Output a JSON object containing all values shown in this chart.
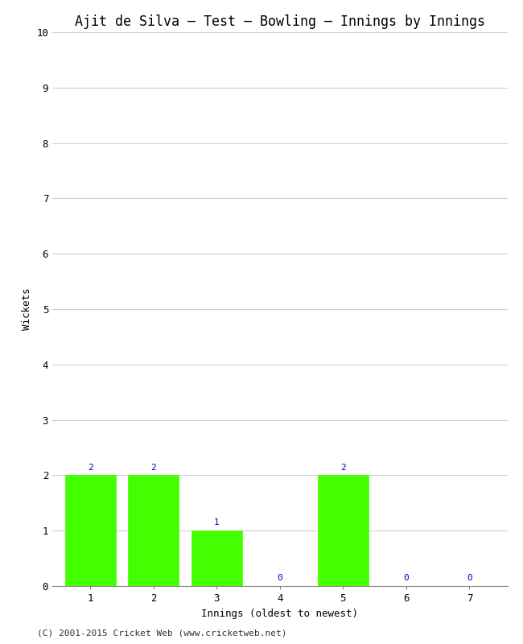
{
  "title": "Ajit de Silva – Test – Bowling – Innings by Innings",
  "xlabel": "Innings (oldest to newest)",
  "ylabel": "Wickets",
  "categories": [
    "1",
    "2",
    "3",
    "4",
    "5",
    "6",
    "7"
  ],
  "values": [
    2,
    2,
    1,
    0,
    2,
    0,
    0
  ],
  "bar_color": "#44ff00",
  "bar_edge_color": "#44ff00",
  "ylim": [
    0,
    10
  ],
  "yticks": [
    0,
    1,
    2,
    3,
    4,
    5,
    6,
    7,
    8,
    9,
    10
  ],
  "label_color": "#0000cc",
  "background_color": "#ffffff",
  "plot_bg_color": "#ffffff",
  "grid_color": "#d0d0d0",
  "title_fontsize": 12,
  "axis_label_fontsize": 9,
  "tick_fontsize": 9,
  "annotation_fontsize": 8,
  "footer": "(C) 2001-2015 Cricket Web (www.cricketweb.net)",
  "footer_fontsize": 8
}
